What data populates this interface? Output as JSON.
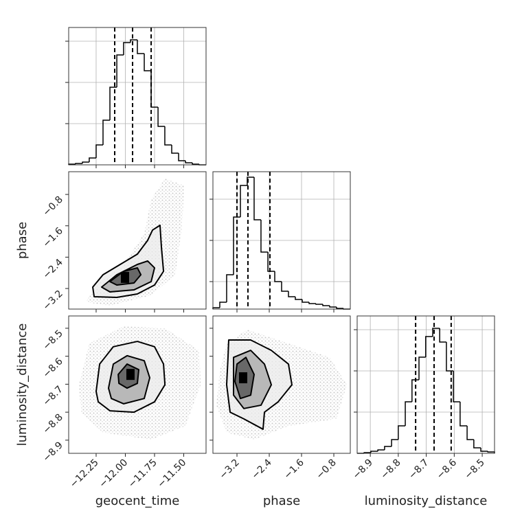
{
  "chart_data": [
    {
      "type": "histogram",
      "xlim": [
        -12.485,
        -11.309
      ],
      "ylim": [
        0,
        200
      ],
      "grid": true,
      "bins": [
        -12.485,
        -12.426,
        -12.367,
        -12.309,
        -12.25,
        -12.191,
        -12.132,
        -12.073,
        -12.015,
        -11.956,
        -11.897,
        -11.838,
        -11.779,
        -11.72,
        -11.662,
        -11.603,
        -11.544,
        -11.485,
        -11.426,
        -11.368,
        -11.309
      ],
      "values": [
        1,
        2,
        4,
        10,
        29,
        65,
        113,
        160,
        178,
        182,
        162,
        137,
        84,
        56,
        29,
        17,
        6,
        3,
        1,
        0
      ],
      "quantiles": [
        -12.091,
        -11.938,
        -11.779
      ],
      "xticks": [
        -12.25,
        -12,
        -11.75,
        -11.5
      ],
      "yticks": [
        60,
        120,
        180
      ]
    },
    {
      "type": "contour",
      "xlim": [
        -12.485,
        -11.309
      ],
      "ylim": [
        -3.725,
        -0.22
      ],
      "ylabel": "phase",
      "cloud": {
        "x": [
          -12.338,
          -12.25,
          -12.014,
          -11.838,
          -11.779,
          -11.661,
          -11.497,
          -11.514,
          -11.573,
          -11.779,
          -12.132
        ],
        "y": [
          -3.55,
          -3.112,
          -2.586,
          -1.797,
          -0.92,
          -0.395,
          -0.57,
          -1.621,
          -2.849,
          -3.375,
          -3.638
        ]
      },
      "contours": [
        {
          "x": [
            -12.267,
            -12.279,
            -12.191,
            -12.044,
            -11.897,
            -11.809,
            -11.767,
            -11.703,
            -11.691,
            -11.673,
            -11.75,
            -11.897,
            -12.073
          ],
          "y": [
            -3.41,
            -3.164,
            -2.849,
            -2.586,
            -2.323,
            -1.972,
            -1.709,
            -1.587,
            -2.148,
            -2.761,
            -3.112,
            -3.34,
            -3.427
          ]
        },
        {
          "x": [
            -12.203,
            -12.073,
            -11.897,
            -11.809,
            -11.75,
            -11.779,
            -11.926,
            -12.132
          ],
          "y": [
            -3.164,
            -2.849,
            -2.586,
            -2.498,
            -2.673,
            -3.024,
            -3.235,
            -3.287
          ]
        },
        {
          "x": [
            -12.132,
            -12.014,
            -11.897,
            -11.867,
            -11.926,
            -12.073
          ],
          "y": [
            -3.024,
            -2.761,
            -2.673,
            -2.849,
            -3.059,
            -3.112
          ]
        }
      ],
      "peak": {
        "x": -12.003,
        "y": -2.917
      },
      "xticks": [
        -12.25,
        -12,
        -11.75,
        -11.5
      ],
      "yticks": [
        {
          "value": -3.2,
          "label": "−3.2"
        },
        {
          "value": -2.4,
          "label": "−2.4"
        },
        {
          "value": -1.6,
          "label": "−1.6"
        },
        {
          "value": -0.8,
          "label": "−0.8"
        }
      ]
    },
    {
      "type": "histogram",
      "xlim": [
        -3.796,
        -0.392
      ],
      "ylim": [
        0,
        200
      ],
      "grid": true,
      "bins": [
        -3.796,
        -3.626,
        -3.456,
        -3.285,
        -3.115,
        -2.945,
        -2.775,
        -2.605,
        -2.434,
        -2.264,
        -2.094,
        -1.924,
        -1.754,
        -1.583,
        -1.413,
        -1.243,
        -1.073,
        -0.903,
        -0.732,
        -0.562,
        -0.392
      ],
      "values": [
        2,
        10,
        50,
        134,
        180,
        192,
        130,
        83,
        55,
        40,
        26,
        18,
        14,
        10,
        8,
        7,
        5,
        3,
        1,
        0
      ],
      "quantiles": [
        -3.2,
        -2.928,
        -2.383
      ],
      "xticks": [
        -3.2,
        -2.4,
        -1.6,
        -0.8
      ],
      "yticks": [
        40,
        100,
        160
      ]
    },
    {
      "type": "contour",
      "xlim": [
        -12.485,
        -11.309
      ],
      "ylim": [
        -8.947,
        -8.456
      ],
      "xlabel": "geocent_time",
      "ylabel": "luminosity_distance",
      "cloud": {
        "x": [
          -12.397,
          -12.309,
          -12.014,
          -11.661,
          -11.367,
          -11.355,
          -11.485,
          -11.779,
          -12.191,
          -12.379
        ],
        "y": [
          -8.702,
          -8.554,
          -8.493,
          -8.5,
          -8.579,
          -8.702,
          -8.849,
          -8.898,
          -8.873,
          -8.8
        ]
      },
      "contours": [
        {
          "x": [
            -12.25,
            -12.22,
            -12.103,
            -11.897,
            -11.75,
            -11.673,
            -11.661,
            -11.75,
            -11.926,
            -12.132,
            -12.232
          ],
          "y": [
            -8.726,
            -8.628,
            -8.566,
            -8.547,
            -8.566,
            -8.628,
            -8.702,
            -8.763,
            -8.8,
            -8.795,
            -8.763
          ]
        },
        {
          "x": [
            -12.144,
            -12.103,
            -11.985,
            -11.838,
            -11.791,
            -11.838,
            -12.014,
            -12.12
          ],
          "y": [
            -8.714,
            -8.628,
            -8.598,
            -8.616,
            -8.677,
            -8.751,
            -8.77,
            -8.751
          ]
        },
        {
          "x": [
            -12.061,
            -11.985,
            -11.885,
            -11.897,
            -11.985,
            -12.055
          ],
          "y": [
            -8.665,
            -8.628,
            -8.648,
            -8.697,
            -8.714,
            -8.697
          ]
        }
      ],
      "peak": {
        "x": -11.956,
        "y": -8.665
      },
      "xticks": [
        {
          "value": -12.25,
          "label": "−12.25"
        },
        {
          "value": -12,
          "label": "−12.00"
        },
        {
          "value": -11.75,
          "label": "−11.75"
        },
        {
          "value": -11.5,
          "label": "−11.50"
        }
      ],
      "yticks": [
        {
          "value": -8.9,
          "label": "−8.9"
        },
        {
          "value": -8.8,
          "label": "−8.8"
        },
        {
          "value": -8.7,
          "label": "−8.7"
        },
        {
          "value": -8.6,
          "label": "−8.6"
        },
        {
          "value": -8.5,
          "label": "−8.5"
        }
      ]
    },
    {
      "type": "contour",
      "xlim": [
        -3.796,
        -0.392
      ],
      "ylim": [
        -8.947,
        -8.456
      ],
      "xlabel": "phase",
      "cloud": {
        "x": [
          -3.626,
          -3.456,
          -2.945,
          -1.924,
          -0.902,
          -0.477,
          -0.732,
          -1.924,
          -2.775,
          -3.456,
          -3.711
        ],
        "y": [
          -8.652,
          -8.554,
          -8.505,
          -8.554,
          -8.604,
          -8.702,
          -8.824,
          -8.849,
          -8.898,
          -8.873,
          -8.775
        ]
      },
      "contours": [
        {
          "x": [
            -3.405,
            -2.86,
            -2.349,
            -1.924,
            -1.839,
            -2.179,
            -2.519,
            -2.554,
            -3.03,
            -3.37,
            -3.456,
            -3.422
          ],
          "y": [
            -8.542,
            -8.542,
            -8.579,
            -8.628,
            -8.702,
            -8.763,
            -8.8,
            -8.861,
            -8.824,
            -8.8,
            -8.702,
            -8.604
          ]
        },
        {
          "x": [
            -3.285,
            -2.86,
            -2.519,
            -2.349,
            -2.604,
            -3.03,
            -3.285
          ],
          "y": [
            -8.604,
            -8.579,
            -8.628,
            -8.702,
            -8.775,
            -8.787,
            -8.739
          ]
        },
        {
          "x": [
            -3.2,
            -2.979,
            -2.775,
            -2.86,
            -3.115,
            -3.251
          ],
          "y": [
            -8.628,
            -8.604,
            -8.665,
            -8.739,
            -8.751,
            -8.69
          ]
        }
      ],
      "peak": {
        "x": -3.047,
        "y": -8.677
      },
      "xticks": [
        {
          "value": -3.2,
          "label": "−3.2"
        },
        {
          "value": -2.4,
          "label": "−2.4"
        },
        {
          "value": -1.6,
          "label": "−1.6"
        },
        {
          "value": -0.8,
          "label": "−0.8"
        }
      ],
      "yticks": [
        -8.9,
        -8.8,
        -8.7,
        -8.6,
        -8.5
      ]
    },
    {
      "type": "histogram",
      "xlim": [
        -8.947,
        -8.456
      ],
      "ylim": [
        0,
        200
      ],
      "grid": true,
      "xlabel": "luminosity_distance",
      "bins": [
        -8.947,
        -8.922,
        -8.898,
        -8.873,
        -8.849,
        -8.824,
        -8.8,
        -8.775,
        -8.751,
        -8.726,
        -8.702,
        -8.677,
        -8.652,
        -8.628,
        -8.603,
        -8.579,
        -8.554,
        -8.53,
        -8.505,
        -8.48,
        -8.456
      ],
      "values": [
        0,
        1,
        3,
        5,
        10,
        20,
        40,
        75,
        107,
        140,
        170,
        182,
        162,
        120,
        75,
        40,
        20,
        8,
        3,
        2
      ],
      "quantiles": [
        -8.738,
        -8.672,
        -8.611
      ],
      "xticks": [
        {
          "value": -8.9,
          "label": "−8.9"
        },
        {
          "value": -8.8,
          "label": "−8.8"
        },
        {
          "value": -8.7,
          "label": "−8.7"
        },
        {
          "value": -8.6,
          "label": "−8.6"
        },
        {
          "value": -8.5,
          "label": "−8.5"
        }
      ],
      "yticks": [
        60,
        120,
        180
      ]
    }
  ]
}
